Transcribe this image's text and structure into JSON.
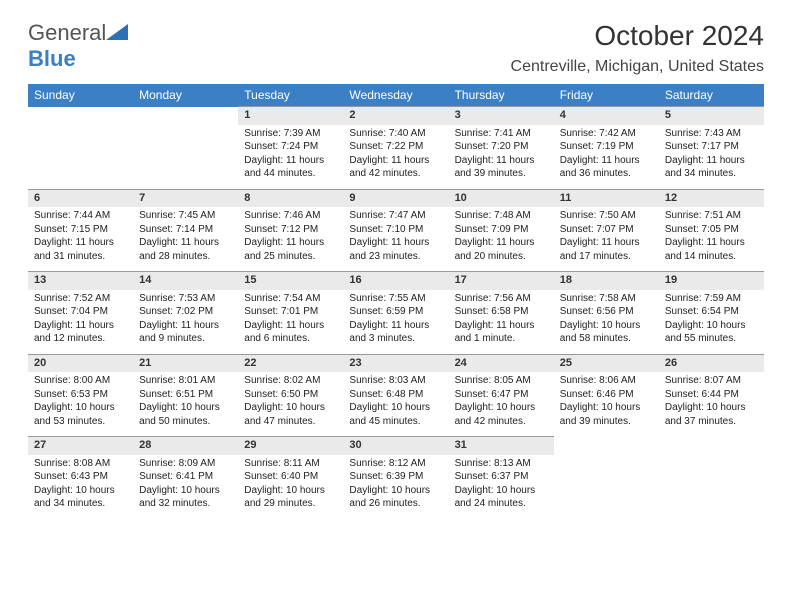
{
  "brand": {
    "name_part1": "General",
    "name_part2": "Blue"
  },
  "title": "October 2024",
  "location": "Centreville, Michigan, United States",
  "colors": {
    "header_bg": "#3b7fc4",
    "daynum_bg": "#eaeaea",
    "text": "#222222"
  },
  "day_headers": [
    "Sunday",
    "Monday",
    "Tuesday",
    "Wednesday",
    "Thursday",
    "Friday",
    "Saturday"
  ],
  "weeks": [
    [
      null,
      null,
      {
        "n": "1",
        "sr": "7:39 AM",
        "ss": "7:24 PM",
        "dl": "11 hours and 44 minutes."
      },
      {
        "n": "2",
        "sr": "7:40 AM",
        "ss": "7:22 PM",
        "dl": "11 hours and 42 minutes."
      },
      {
        "n": "3",
        "sr": "7:41 AM",
        "ss": "7:20 PM",
        "dl": "11 hours and 39 minutes."
      },
      {
        "n": "4",
        "sr": "7:42 AM",
        "ss": "7:19 PM",
        "dl": "11 hours and 36 minutes."
      },
      {
        "n": "5",
        "sr": "7:43 AM",
        "ss": "7:17 PM",
        "dl": "11 hours and 34 minutes."
      }
    ],
    [
      {
        "n": "6",
        "sr": "7:44 AM",
        "ss": "7:15 PM",
        "dl": "11 hours and 31 minutes."
      },
      {
        "n": "7",
        "sr": "7:45 AM",
        "ss": "7:14 PM",
        "dl": "11 hours and 28 minutes."
      },
      {
        "n": "8",
        "sr": "7:46 AM",
        "ss": "7:12 PM",
        "dl": "11 hours and 25 minutes."
      },
      {
        "n": "9",
        "sr": "7:47 AM",
        "ss": "7:10 PM",
        "dl": "11 hours and 23 minutes."
      },
      {
        "n": "10",
        "sr": "7:48 AM",
        "ss": "7:09 PM",
        "dl": "11 hours and 20 minutes."
      },
      {
        "n": "11",
        "sr": "7:50 AM",
        "ss": "7:07 PM",
        "dl": "11 hours and 17 minutes."
      },
      {
        "n": "12",
        "sr": "7:51 AM",
        "ss": "7:05 PM",
        "dl": "11 hours and 14 minutes."
      }
    ],
    [
      {
        "n": "13",
        "sr": "7:52 AM",
        "ss": "7:04 PM",
        "dl": "11 hours and 12 minutes."
      },
      {
        "n": "14",
        "sr": "7:53 AM",
        "ss": "7:02 PM",
        "dl": "11 hours and 9 minutes."
      },
      {
        "n": "15",
        "sr": "7:54 AM",
        "ss": "7:01 PM",
        "dl": "11 hours and 6 minutes."
      },
      {
        "n": "16",
        "sr": "7:55 AM",
        "ss": "6:59 PM",
        "dl": "11 hours and 3 minutes."
      },
      {
        "n": "17",
        "sr": "7:56 AM",
        "ss": "6:58 PM",
        "dl": "11 hours and 1 minute."
      },
      {
        "n": "18",
        "sr": "7:58 AM",
        "ss": "6:56 PM",
        "dl": "10 hours and 58 minutes."
      },
      {
        "n": "19",
        "sr": "7:59 AM",
        "ss": "6:54 PM",
        "dl": "10 hours and 55 minutes."
      }
    ],
    [
      {
        "n": "20",
        "sr": "8:00 AM",
        "ss": "6:53 PM",
        "dl": "10 hours and 53 minutes."
      },
      {
        "n": "21",
        "sr": "8:01 AM",
        "ss": "6:51 PM",
        "dl": "10 hours and 50 minutes."
      },
      {
        "n": "22",
        "sr": "8:02 AM",
        "ss": "6:50 PM",
        "dl": "10 hours and 47 minutes."
      },
      {
        "n": "23",
        "sr": "8:03 AM",
        "ss": "6:48 PM",
        "dl": "10 hours and 45 minutes."
      },
      {
        "n": "24",
        "sr": "8:05 AM",
        "ss": "6:47 PM",
        "dl": "10 hours and 42 minutes."
      },
      {
        "n": "25",
        "sr": "8:06 AM",
        "ss": "6:46 PM",
        "dl": "10 hours and 39 minutes."
      },
      {
        "n": "26",
        "sr": "8:07 AM",
        "ss": "6:44 PM",
        "dl": "10 hours and 37 minutes."
      }
    ],
    [
      {
        "n": "27",
        "sr": "8:08 AM",
        "ss": "6:43 PM",
        "dl": "10 hours and 34 minutes."
      },
      {
        "n": "28",
        "sr": "8:09 AM",
        "ss": "6:41 PM",
        "dl": "10 hours and 32 minutes."
      },
      {
        "n": "29",
        "sr": "8:11 AM",
        "ss": "6:40 PM",
        "dl": "10 hours and 29 minutes."
      },
      {
        "n": "30",
        "sr": "8:12 AM",
        "ss": "6:39 PM",
        "dl": "10 hours and 26 minutes."
      },
      {
        "n": "31",
        "sr": "8:13 AM",
        "ss": "6:37 PM",
        "dl": "10 hours and 24 minutes."
      },
      null,
      null
    ]
  ],
  "labels": {
    "sunrise": "Sunrise:",
    "sunset": "Sunset:",
    "daylight": "Daylight:"
  }
}
